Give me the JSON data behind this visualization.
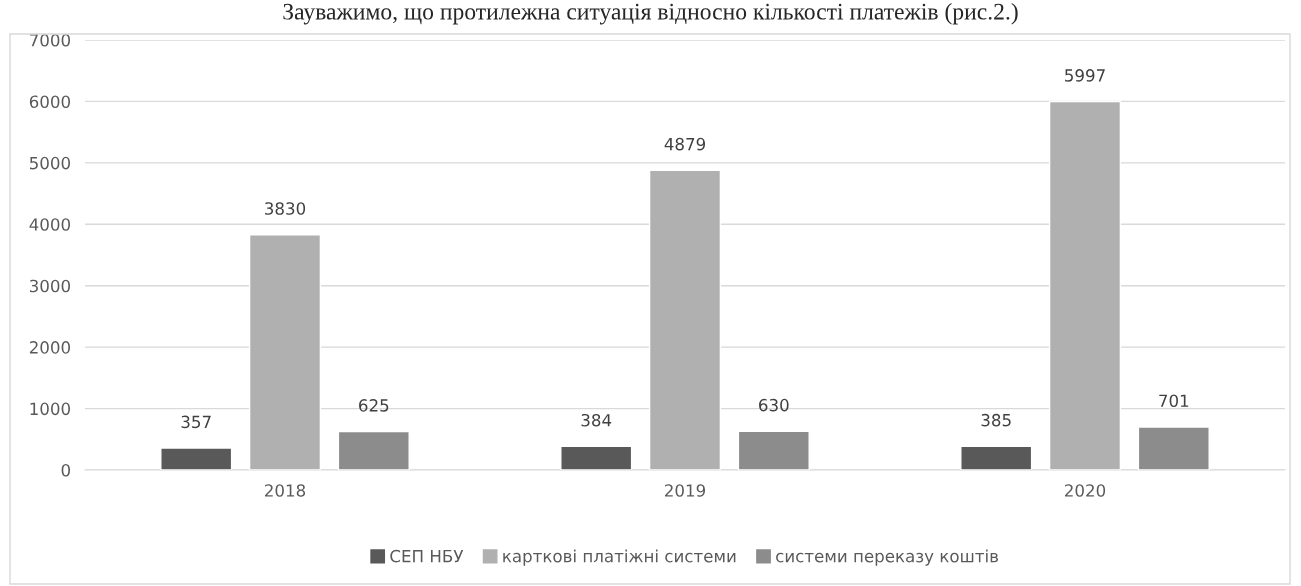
{
  "chart_data": {
    "type": "bar",
    "categories": [
      "2018",
      "2019",
      "2020"
    ],
    "series": [
      {
        "name": "СЕП НБУ",
        "color": "#595959",
        "values": [
          357,
          384,
          385
        ]
      },
      {
        "name": "карткові платіжні системи",
        "color": "#b0b0b0",
        "values": [
          3830,
          4879,
          5997
        ]
      },
      {
        "name": "системи переказу коштів",
        "color": "#8c8c8c",
        "values": [
          625,
          630,
          701
        ]
      }
    ],
    "ylim": [
      0,
      7000
    ],
    "yticks": [
      0,
      1000,
      2000,
      3000,
      4000,
      5000,
      6000,
      7000
    ],
    "grid": "y",
    "legend": "bottom",
    "data_labels": true,
    "annotations": [
      "Зауважимо, що протилежна ситуація відносно кількості платежів (рис.2.)"
    ]
  }
}
